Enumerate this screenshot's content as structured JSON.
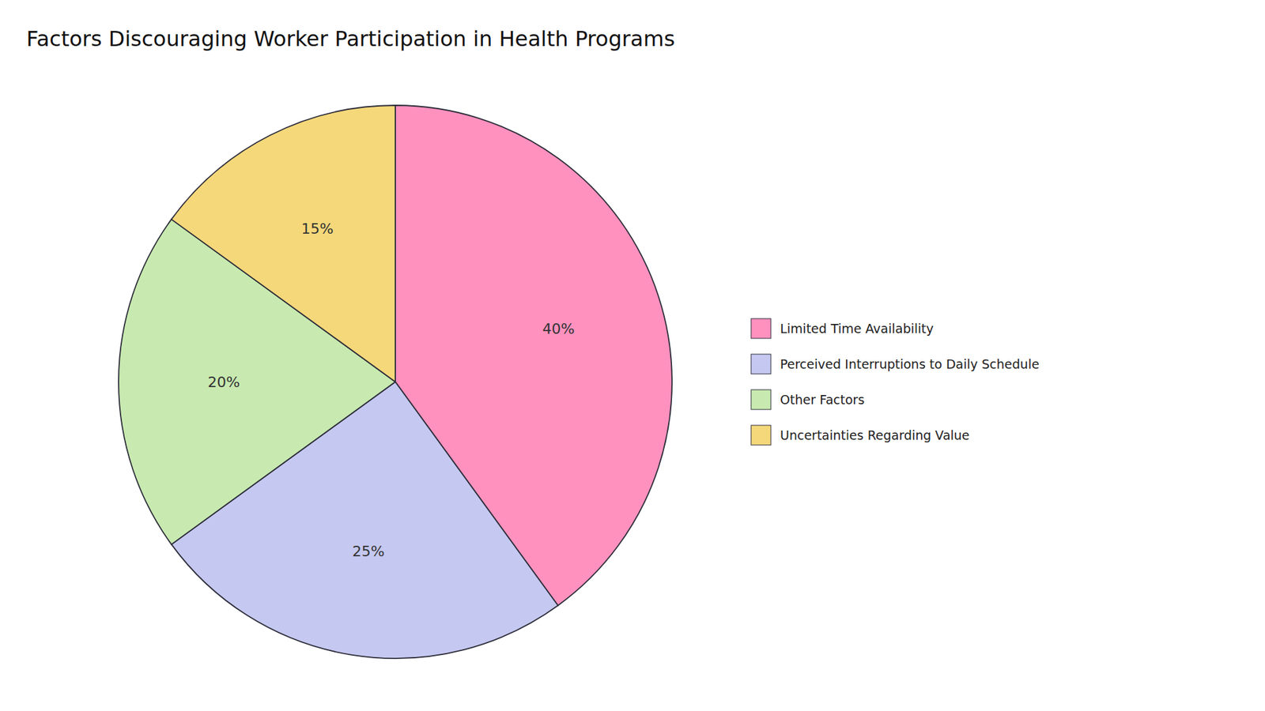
{
  "chart_data": {
    "type": "pie",
    "title": "Factors Discouraging Worker Participation in Health Programs",
    "categories": [
      "Limited Time Availability",
      "Perceived Interruptions to Daily Schedule",
      "Other Factors",
      "Uncertainties Regarding Value"
    ],
    "values": [
      40,
      25,
      20,
      15
    ],
    "value_labels": [
      "40%",
      "25%",
      "20%",
      "15%"
    ],
    "colors": [
      "#FF91BE",
      "#C5C8F0",
      "#C8EAB0",
      "#F5D87A"
    ],
    "data_labels": true,
    "legend": "right"
  }
}
